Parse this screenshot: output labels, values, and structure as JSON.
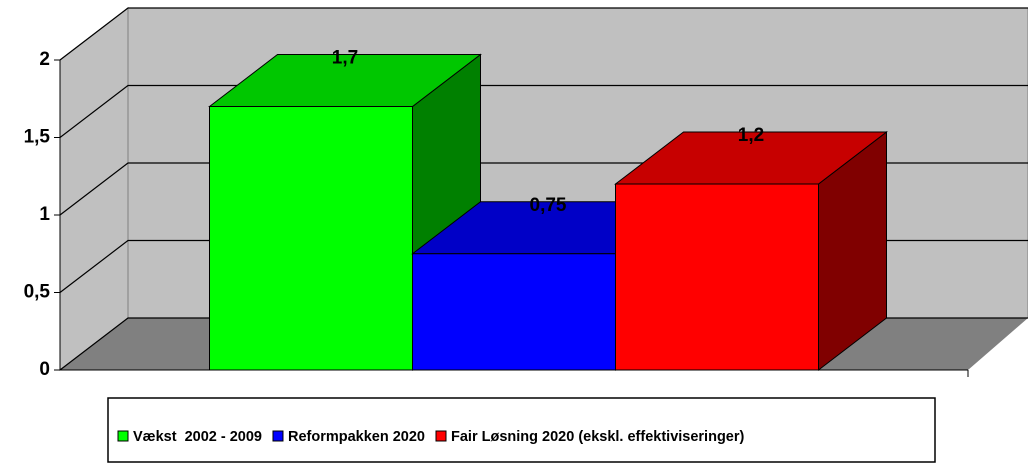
{
  "chart_data": {
    "type": "bar3d",
    "categories": [
      null
    ],
    "series": [
      {
        "name": "Vækst  2002 - 2009",
        "color": "#00ff00",
        "values": [
          1.7
        ],
        "value_labels": [
          "1,7"
        ]
      },
      {
        "name": "Reformpakken 2020",
        "color": "#0000ff",
        "values": [
          0.75
        ],
        "value_labels": [
          "0,75"
        ]
      },
      {
        "name": "Fair Løsning 2020 (ekskl. effektiviseringer)",
        "color": "#ff0000",
        "values": [
          1.2
        ],
        "value_labels": [
          "1,2"
        ]
      }
    ],
    "ylim": [
      0,
      2
    ],
    "yticks": [
      0,
      {
        "value": 0.5,
        "label": "0,5"
      },
      1,
      {
        "value": 1.5,
        "label": "1,5"
      },
      2
    ],
    "grid": true,
    "legend": "bottom"
  }
}
